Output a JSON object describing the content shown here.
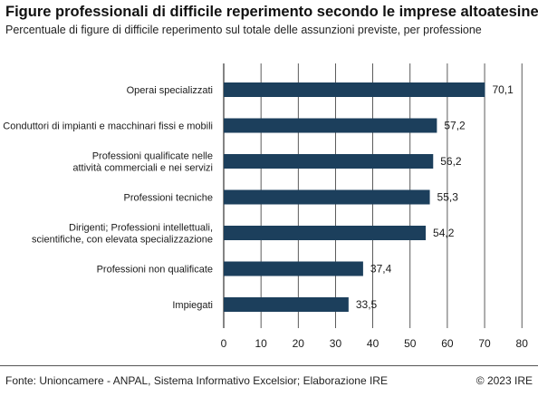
{
  "title": "Figure professionali di difficile reperimento secondo le imprese altoatesine",
  "subtitle": "Percentuale di figure di difficile reperimento sul totale delle assunzioni previste, per professione",
  "footer": {
    "source": "Fonte: Unioncamere - ANPAL, Sistema Informativo Excelsior; Elaborazione IRE",
    "copyright": "© 2023 IRE"
  },
  "colors": {
    "bar": "#1c3f5c",
    "grid": "#333333"
  },
  "chart_data": {
    "type": "bar",
    "orientation": "horizontal",
    "categories": [
      [
        "Operai specializzati"
      ],
      [
        "Conduttori di impianti e macchinari fissi e mobili"
      ],
      [
        "Professioni qualificate nelle",
        "attività commerciali e nei servizi"
      ],
      [
        "Professioni tecniche"
      ],
      [
        "Dirigenti; Professioni intellettuali,",
        "scientifiche, con elevata specializzazione"
      ],
      [
        "Professioni non qualificate"
      ],
      [
        "Impiegati"
      ]
    ],
    "values": [
      70.1,
      57.2,
      56.2,
      55.3,
      54.2,
      37.4,
      33.5
    ],
    "value_labels": [
      "70,1",
      "57,2",
      "56,2",
      "55,3",
      "54,2",
      "37,4",
      "33,5"
    ],
    "xlim": [
      0,
      80
    ],
    "xticks": [
      0,
      10,
      20,
      30,
      40,
      50,
      60,
      70,
      80
    ],
    "grid": "vertical"
  }
}
